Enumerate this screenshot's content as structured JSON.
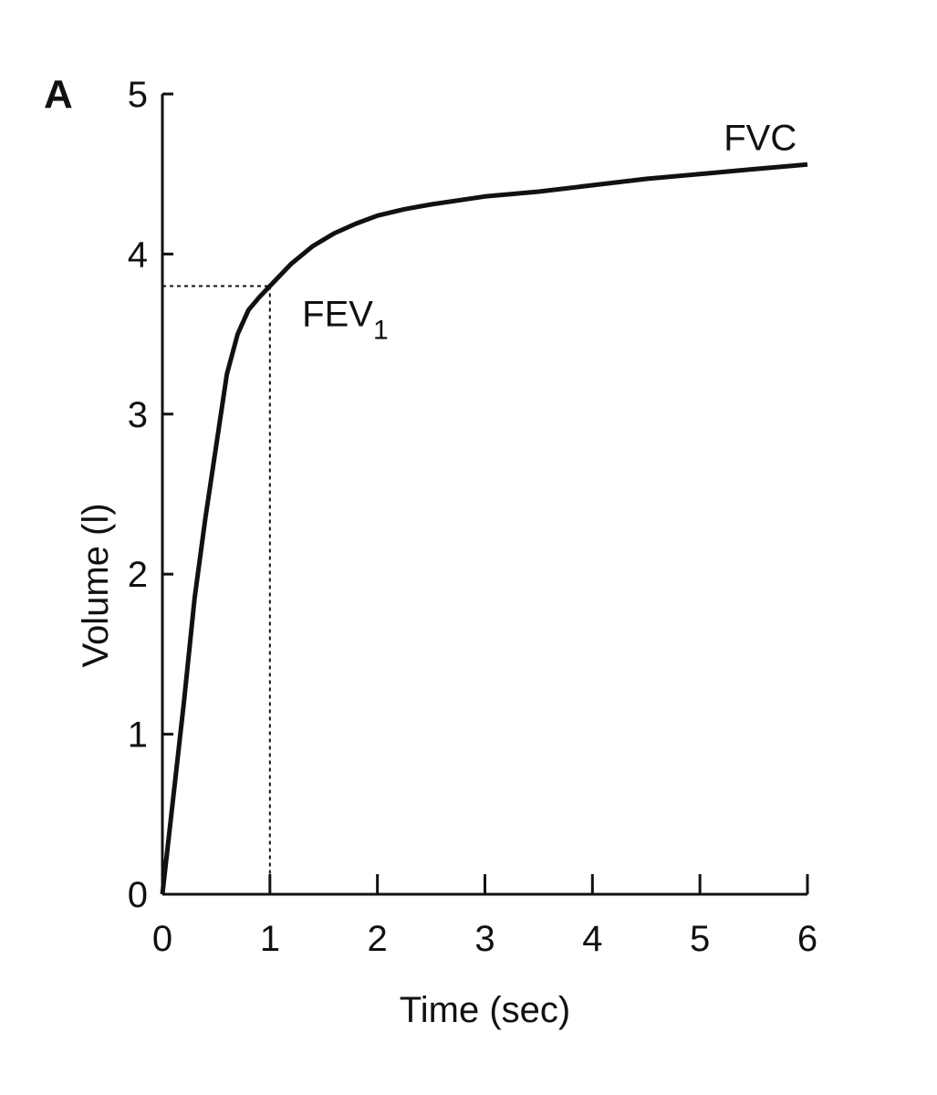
{
  "chart_data": {
    "type": "line",
    "panel_label": "A",
    "title": "",
    "xlabel": "Time (sec)",
    "ylabel": "Volume (l)",
    "xlim": [
      0,
      6
    ],
    "ylim": [
      0,
      5
    ],
    "x_ticks": [
      0,
      1,
      2,
      3,
      4,
      5,
      6
    ],
    "y_ticks": [
      0,
      1,
      2,
      3,
      4,
      5
    ],
    "x_tick_labels": [
      "0",
      "1",
      "2",
      "3",
      "4",
      "5",
      "6"
    ],
    "y_tick_labels": [
      "0",
      "1",
      "2",
      "3",
      "4",
      "5"
    ],
    "grid": false,
    "series": [
      {
        "color": "#111111",
        "points": [
          [
            0,
            0
          ],
          [
            0.1,
            0.6
          ],
          [
            0.2,
            1.2
          ],
          [
            0.3,
            1.85
          ],
          [
            0.4,
            2.35
          ],
          [
            0.5,
            2.8
          ],
          [
            0.6,
            3.25
          ],
          [
            0.7,
            3.5
          ],
          [
            0.8,
            3.65
          ],
          [
            0.9,
            3.73
          ],
          [
            1.0,
            3.8
          ],
          [
            1.2,
            3.94
          ],
          [
            1.4,
            4.05
          ],
          [
            1.6,
            4.13
          ],
          [
            1.8,
            4.19
          ],
          [
            2.0,
            4.24
          ],
          [
            2.25,
            4.28
          ],
          [
            2.5,
            4.31
          ],
          [
            3.0,
            4.36
          ],
          [
            3.5,
            4.39
          ],
          [
            4.0,
            4.43
          ],
          [
            4.5,
            4.47
          ],
          [
            5.0,
            4.5
          ],
          [
            5.5,
            4.53
          ],
          [
            6.0,
            4.56
          ]
        ]
      }
    ],
    "annotations": {
      "fvc": {
        "text": "FVC",
        "x": 5.9,
        "y": 4.65
      },
      "fev1": {
        "text": "FEV",
        "subscript": "1",
        "x": 1.3,
        "y": 3.55,
        "marker_x": 1,
        "marker_y": 3.8
      }
    }
  }
}
